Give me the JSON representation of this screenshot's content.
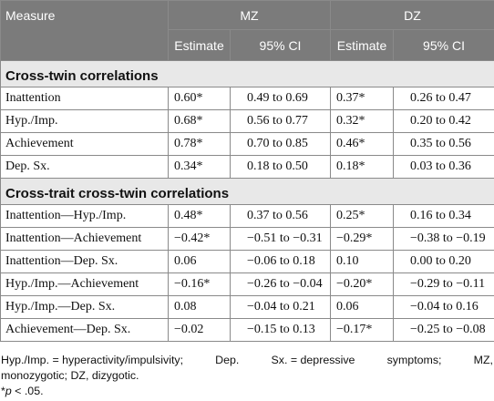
{
  "header": {
    "measure": "Measure",
    "mz": "MZ",
    "dz": "DZ",
    "estimate": "Estimate",
    "ci": "95% CI"
  },
  "sections": [
    {
      "title": "Cross-twin correlations",
      "rows": [
        {
          "measure": "Inattention",
          "mz_est": "0.60*",
          "mz_ci": "0.49 to 0.69",
          "dz_est": "0.37*",
          "dz_ci": "0.26 to 0.47"
        },
        {
          "measure": "Hyp./Imp.",
          "mz_est": "0.68*",
          "mz_ci": "0.56 to 0.77",
          "dz_est": "0.32*",
          "dz_ci": "0.20 to 0.42"
        },
        {
          "measure": "Achievement",
          "mz_est": "0.78*",
          "mz_ci": "0.70 to 0.85",
          "dz_est": "0.46*",
          "dz_ci": "0.35 to 0.56"
        },
        {
          "measure": "Dep. Sx.",
          "mz_est": "0.34*",
          "mz_ci": "0.18 to 0.50",
          "dz_est": "0.18*",
          "dz_ci": "0.03 to 0.36"
        }
      ]
    },
    {
      "title": "Cross-trait cross-twin correlations",
      "rows": [
        {
          "measure": "Inattention—Hyp./Imp.",
          "mz_est": "0.48*",
          "mz_ci": "0.37 to 0.56",
          "dz_est": "0.25*",
          "dz_ci": "0.16 to 0.34"
        },
        {
          "measure": "Inattention—Achievement",
          "mz_est": "−0.42*",
          "mz_ci": "−0.51 to −0.31",
          "dz_est": "−0.29*",
          "dz_ci": "−0.38 to −0.19"
        },
        {
          "measure": "Inattention—Dep. Sx.",
          "mz_est": "0.06",
          "mz_ci": "−0.06 to 0.18",
          "dz_est": "0.10",
          "dz_ci": "0.00 to 0.20"
        },
        {
          "measure": "Hyp./Imp.—Achievement",
          "mz_est": "−0.16*",
          "mz_ci": "−0.26 to −0.04",
          "dz_est": "−0.20*",
          "dz_ci": "−0.29 to −0.11"
        },
        {
          "measure": "Hyp./Imp.—Dep. Sx.",
          "mz_est": "0.08",
          "mz_ci": "−0.04 to 0.21",
          "dz_est": "0.06",
          "dz_ci": "−0.04 to 0.16"
        },
        {
          "measure": "Achievement—Dep. Sx.",
          "mz_est": "−0.02",
          "mz_ci": "−0.15 to 0.13",
          "dz_est": "−0.17*",
          "dz_ci": "−0.25 to −0.08"
        }
      ]
    }
  ],
  "footnote": {
    "line1_parts": [
      "Hyp./Imp. = hyperactivity/impulsivity;",
      "Dep.",
      "Sx. = depressive",
      "symptoms;",
      "MZ,"
    ],
    "line2": "monozygotic; DZ, dizygotic.",
    "sig_star": "*",
    "sig_p": "p",
    "sig_rest": " < .05."
  }
}
